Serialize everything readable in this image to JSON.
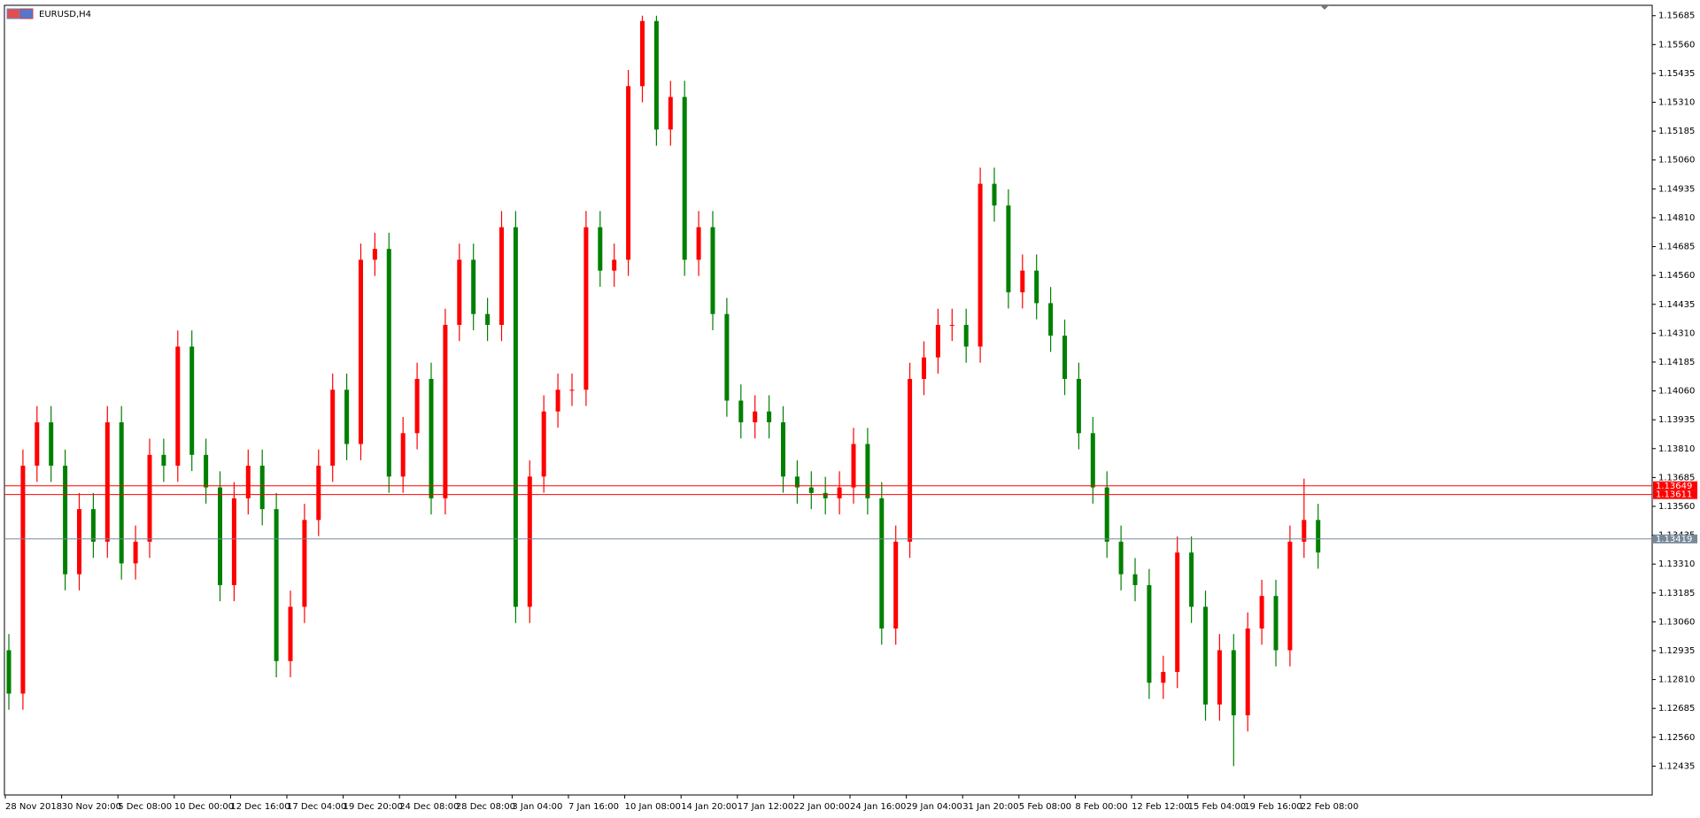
{
  "chart_data": {
    "type": "candlestick",
    "title": "EURUSD,H4",
    "up_color": "#ff0000",
    "down_color": "#008000",
    "categories": [
      "28 Nov 2018",
      null,
      null,
      null,
      "30 Nov 20:00",
      null,
      null,
      null,
      "5 Dec 08:00",
      null,
      null,
      null,
      "10 Dec 00:00",
      null,
      null,
      null,
      "12 Dec 16:00",
      null,
      null,
      null,
      "17 Dec 04:00",
      null,
      null,
      null,
      "19 Dec 20:00",
      null,
      null,
      null,
      "24 Dec 08:00",
      null,
      null,
      null,
      "28 Dec 08:00",
      null,
      null,
      null,
      "3 Jan 04:00",
      null,
      null,
      null,
      "7 Jan 16:00",
      null,
      null,
      null,
      "10 Jan 08:00",
      null,
      null,
      null,
      "14 Jan 20:00",
      null,
      null,
      null,
      "17 Jan 12:00",
      null,
      null,
      null,
      "22 Jan 00:00",
      null,
      null,
      null,
      "24 Jan 16:00",
      null,
      null,
      null,
      "29 Jan 04:00",
      null,
      null,
      null,
      "31 Jan 20:00",
      null,
      null,
      null,
      "5 Feb 08:00",
      null,
      null,
      null,
      "8 Feb 00:00",
      null,
      null,
      null,
      "12 Feb 12:00",
      null,
      null,
      null,
      "15 Feb 04:00",
      null,
      null,
      null,
      "19 Feb 16:00",
      null,
      null,
      null,
      "22 Feb 08:00",
      null
    ],
    "open": [
      1.12937,
      1.12749,
      1.13736,
      1.13924,
      1.13736,
      1.13266,
      1.13548,
      1.13407,
      1.13924,
      1.13313,
      1.13407,
      1.13783,
      1.13736,
      1.14252,
      1.13783,
      1.13642,
      1.13219,
      1.13595,
      1.13736,
      1.13548,
      1.1289,
      1.13125,
      1.13501,
      1.13736,
      1.14065,
      1.1383,
      1.14628,
      1.14675,
      1.13689,
      1.13877,
      1.14112,
      1.13595,
      1.14346,
      1.14628,
      1.14393,
      1.14346,
      1.14769,
      1.13125,
      1.13689,
      1.13971,
      1.14065,
      1.14065,
      1.14769,
      1.14581,
      1.14628,
      1.1538,
      1.15662,
      1.15192,
      1.15333,
      1.14628,
      1.14769,
      1.14393,
      1.14018,
      1.13924,
      1.13971,
      1.13924,
      1.13689,
      1.13642,
      1.13618,
      1.13595,
      1.13642,
      1.1383,
      1.13595,
      1.13031,
      1.13407,
      1.14112,
      1.14205,
      1.14346,
      1.14346,
      1.14252,
      1.14957,
      1.14863,
      1.14487,
      1.14581,
      1.1444,
      1.14299,
      1.14112,
      1.13877,
      1.13642,
      1.13407,
      1.13266,
      1.13219,
      1.12796,
      1.12843,
      1.1336,
      1.13125,
      1.12702,
      1.12937,
      1.12655,
      1.13031,
      1.13172,
      1.12937,
      1.13407,
      1.13501
    ],
    "high": [
      1.13007,
      1.13806,
      1.13994,
      1.13994,
      1.13806,
      1.13618,
      1.13618,
      1.13994,
      1.13994,
      1.13477,
      1.13853,
      1.13853,
      1.14322,
      1.14322,
      1.13853,
      1.13712,
      1.13665,
      1.13806,
      1.13806,
      1.13618,
      1.13195,
      1.13571,
      1.13806,
      1.14135,
      1.14135,
      1.14698,
      1.14745,
      1.14745,
      1.13947,
      1.14182,
      1.14182,
      1.14416,
      1.14698,
      1.14698,
      1.14463,
      1.14839,
      1.14839,
      1.13759,
      1.14041,
      1.14135,
      1.14135,
      1.14839,
      1.14839,
      1.14698,
      1.1545,
      1.15685,
      1.15685,
      1.15403,
      1.15403,
      1.14839,
      1.14839,
      1.14463,
      1.14088,
      1.14041,
      1.14041,
      1.13994,
      1.13759,
      1.13712,
      1.13688,
      1.13712,
      1.139,
      1.139,
      1.13665,
      1.13477,
      1.14182,
      1.14275,
      1.14416,
      1.14416,
      1.14416,
      1.15027,
      1.15027,
      1.14933,
      1.14651,
      1.14651,
      1.1451,
      1.14369,
      1.14182,
      1.13947,
      1.13712,
      1.13477,
      1.13336,
      1.13289,
      1.12913,
      1.1343,
      1.1343,
      1.13195,
      1.13007,
      1.13007,
      1.13101,
      1.13242,
      1.13242,
      1.13477,
      1.1368,
      1.13571
    ],
    "low": [
      1.12679,
      1.12679,
      1.13666,
      1.13666,
      1.13196,
      1.13196,
      1.13337,
      1.13337,
      1.13243,
      1.13243,
      1.13337,
      1.13666,
      1.13666,
      1.13713,
      1.13572,
      1.13149,
      1.13149,
      1.13525,
      1.13478,
      1.1282,
      1.1282,
      1.13055,
      1.13431,
      1.13666,
      1.1376,
      1.1376,
      1.14558,
      1.13619,
      1.13619,
      1.13807,
      1.13525,
      1.13525,
      1.14276,
      1.14323,
      1.14276,
      1.14276,
      1.13055,
      1.13055,
      1.13619,
      1.13901,
      1.13995,
      1.13995,
      1.14511,
      1.14511,
      1.14558,
      1.1531,
      1.15122,
      1.15122,
      1.14558,
      1.14558,
      1.14323,
      1.13948,
      1.13854,
      1.13854,
      1.13854,
      1.13619,
      1.13572,
      1.13548,
      1.13525,
      1.13525,
      1.13572,
      1.13525,
      1.12961,
      1.12961,
      1.13337,
      1.14042,
      1.14135,
      1.14276,
      1.14182,
      1.14182,
      1.14793,
      1.14417,
      1.14417,
      1.1437,
      1.14229,
      1.14042,
      1.13807,
      1.13572,
      1.13337,
      1.13196,
      1.13149,
      1.12726,
      1.12726,
      1.12773,
      1.13055,
      1.12632,
      1.12632,
      1.12435,
      1.12585,
      1.12961,
      1.12867,
      1.12867,
      1.13337,
      1.1329
    ],
    "close": [
      1.12749,
      1.13736,
      1.13924,
      1.13736,
      1.13266,
      1.13548,
      1.13407,
      1.13924,
      1.13313,
      1.13407,
      1.13783,
      1.13736,
      1.14252,
      1.13783,
      1.13642,
      1.13219,
      1.13595,
      1.13736,
      1.13548,
      1.1289,
      1.13125,
      1.13501,
      1.13736,
      1.14065,
      1.1383,
      1.14628,
      1.14675,
      1.13689,
      1.13877,
      1.14112,
      1.13595,
      1.14346,
      1.14628,
      1.14393,
      1.14346,
      1.14769,
      1.13125,
      1.13689,
      1.13971,
      1.14065,
      1.14065,
      1.14769,
      1.14581,
      1.14628,
      1.1538,
      1.15662,
      1.15192,
      1.15333,
      1.14628,
      1.14769,
      1.14393,
      1.14018,
      1.13924,
      1.13971,
      1.13924,
      1.13689,
      1.13642,
      1.13618,
      1.13595,
      1.13642,
      1.1383,
      1.13595,
      1.13031,
      1.13407,
      1.14112,
      1.14205,
      1.14346,
      1.14346,
      1.14252,
      1.14957,
      1.14863,
      1.14487,
      1.14581,
      1.1444,
      1.14299,
      1.14112,
      1.13877,
      1.13642,
      1.13407,
      1.13266,
      1.13219,
      1.12796,
      1.12843,
      1.1336,
      1.13125,
      1.12702,
      1.12937,
      1.12655,
      1.13031,
      1.13172,
      1.12937,
      1.13407,
      1.13501,
      1.1336
    ],
    "ylim": [
      1.1231,
      1.1573
    ],
    "yticks": [
      1.12435,
      {
        "value": 1.1256,
        "label": "1.12560"
      },
      1.12685,
      {
        "value": 1.1281,
        "label": "1.12810"
      },
      1.12935,
      {
        "value": 1.1306,
        "label": "1.13060"
      },
      1.13185,
      {
        "value": 1.1331,
        "label": "1.13310"
      },
      1.13435,
      {
        "value": 1.1356,
        "label": "1.13560"
      },
      1.13685,
      {
        "value": 1.1381,
        "label": "1.13810"
      },
      1.13935,
      {
        "value": 1.1406,
        "label": "1.14060"
      },
      1.14185,
      {
        "value": 1.1431,
        "label": "1.14310"
      },
      1.14435,
      {
        "value": 1.1456,
        "label": "1.14560"
      },
      1.14685,
      {
        "value": 1.1481,
        "label": "1.14810"
      },
      1.14935,
      {
        "value": 1.1506,
        "label": "1.15060"
      },
      1.15185,
      {
        "value": 1.1531,
        "label": "1.15310"
      },
      1.15435,
      {
        "value": 1.1556,
        "label": "1.15560"
      },
      1.15685
    ],
    "price_lines": [
      {
        "value": 1.13649,
        "color": "#ff0000"
      },
      {
        "value": 1.13611,
        "color": "#ff0000"
      }
    ],
    "bid_line": {
      "value": 1.13419,
      "color": "#778899"
    }
  }
}
